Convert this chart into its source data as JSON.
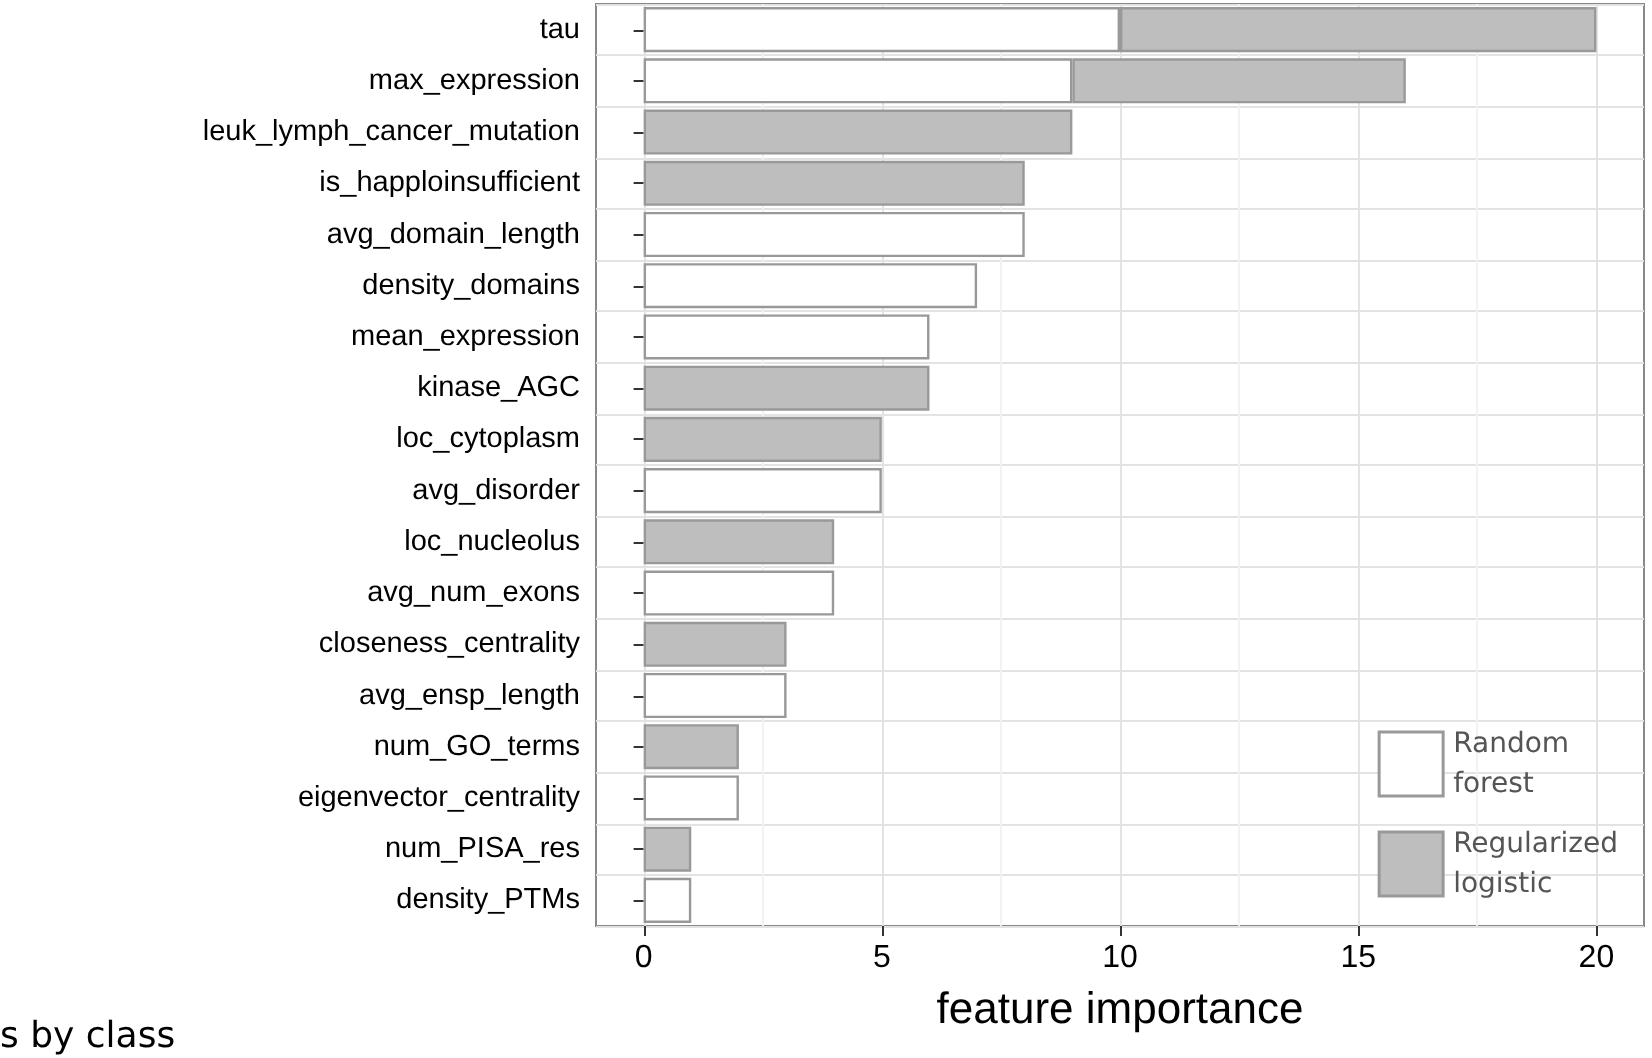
{
  "chart_data": {
    "type": "bar",
    "orientation": "horizontal",
    "stacked": true,
    "xlabel": "feature importance",
    "categories": [
      "tau",
      "max_expression",
      "leuk_lymph_cancer_mutation",
      "is_happloinsufficient",
      "avg_domain_length",
      "density_domains",
      "mean_expression",
      "kinase_AGC",
      "loc_cytoplasm",
      "avg_disorder",
      "loc_nucleolus",
      "avg_num_exons",
      "closeness_centrality",
      "avg_ensp_length",
      "num_GO_terms",
      "eigenvector_centrality",
      "num_PISA_res",
      "density_PTMs"
    ],
    "series": [
      {
        "name": "Random forest",
        "color": "#ffffff",
        "values": [
          10,
          9,
          null,
          null,
          8,
          7,
          6,
          null,
          null,
          5,
          null,
          4,
          null,
          3,
          null,
          2,
          null,
          1
        ]
      },
      {
        "name": "Regularized logistic",
        "color": "#bebebe",
        "values": [
          10,
          7,
          9,
          8,
          null,
          null,
          null,
          6,
          5,
          null,
          4,
          null,
          3,
          null,
          2,
          null,
          1,
          null
        ]
      }
    ],
    "xlim": [
      -1,
      21
    ],
    "xticks": [
      0,
      5,
      10,
      15,
      20
    ],
    "grid": true,
    "legend": "bottom right",
    "annotations": [
      "s by class"
    ]
  }
}
